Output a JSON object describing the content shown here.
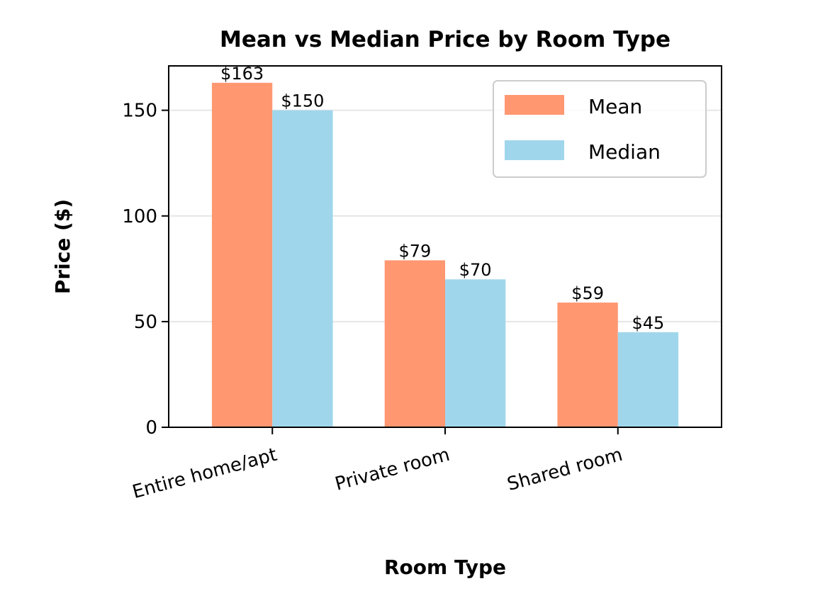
{
  "chart_data": {
    "type": "bar",
    "title": "Mean vs Median Price by Room Type",
    "xlabel": "Room Type",
    "ylabel": "Price ($)",
    "categories": [
      "Entire home/apt",
      "Private room",
      "Shared room"
    ],
    "series": [
      {
        "name": "Mean",
        "values": [
          163,
          79,
          59
        ],
        "labels": [
          "$163",
          "$79",
          "$59"
        ],
        "color": "#FF9771"
      },
      {
        "name": "Median",
        "values": [
          150,
          70,
          45
        ],
        "labels": [
          "$150",
          "$70",
          "$45"
        ],
        "color": "#A0D6EC"
      }
    ],
    "ylim": [
      0,
      171
    ],
    "yticks": [
      0,
      50,
      100,
      150
    ],
    "ytick_labels": [
      "0",
      "50",
      "100",
      "150"
    ],
    "grid": "y",
    "legend_position": "upper right"
  }
}
